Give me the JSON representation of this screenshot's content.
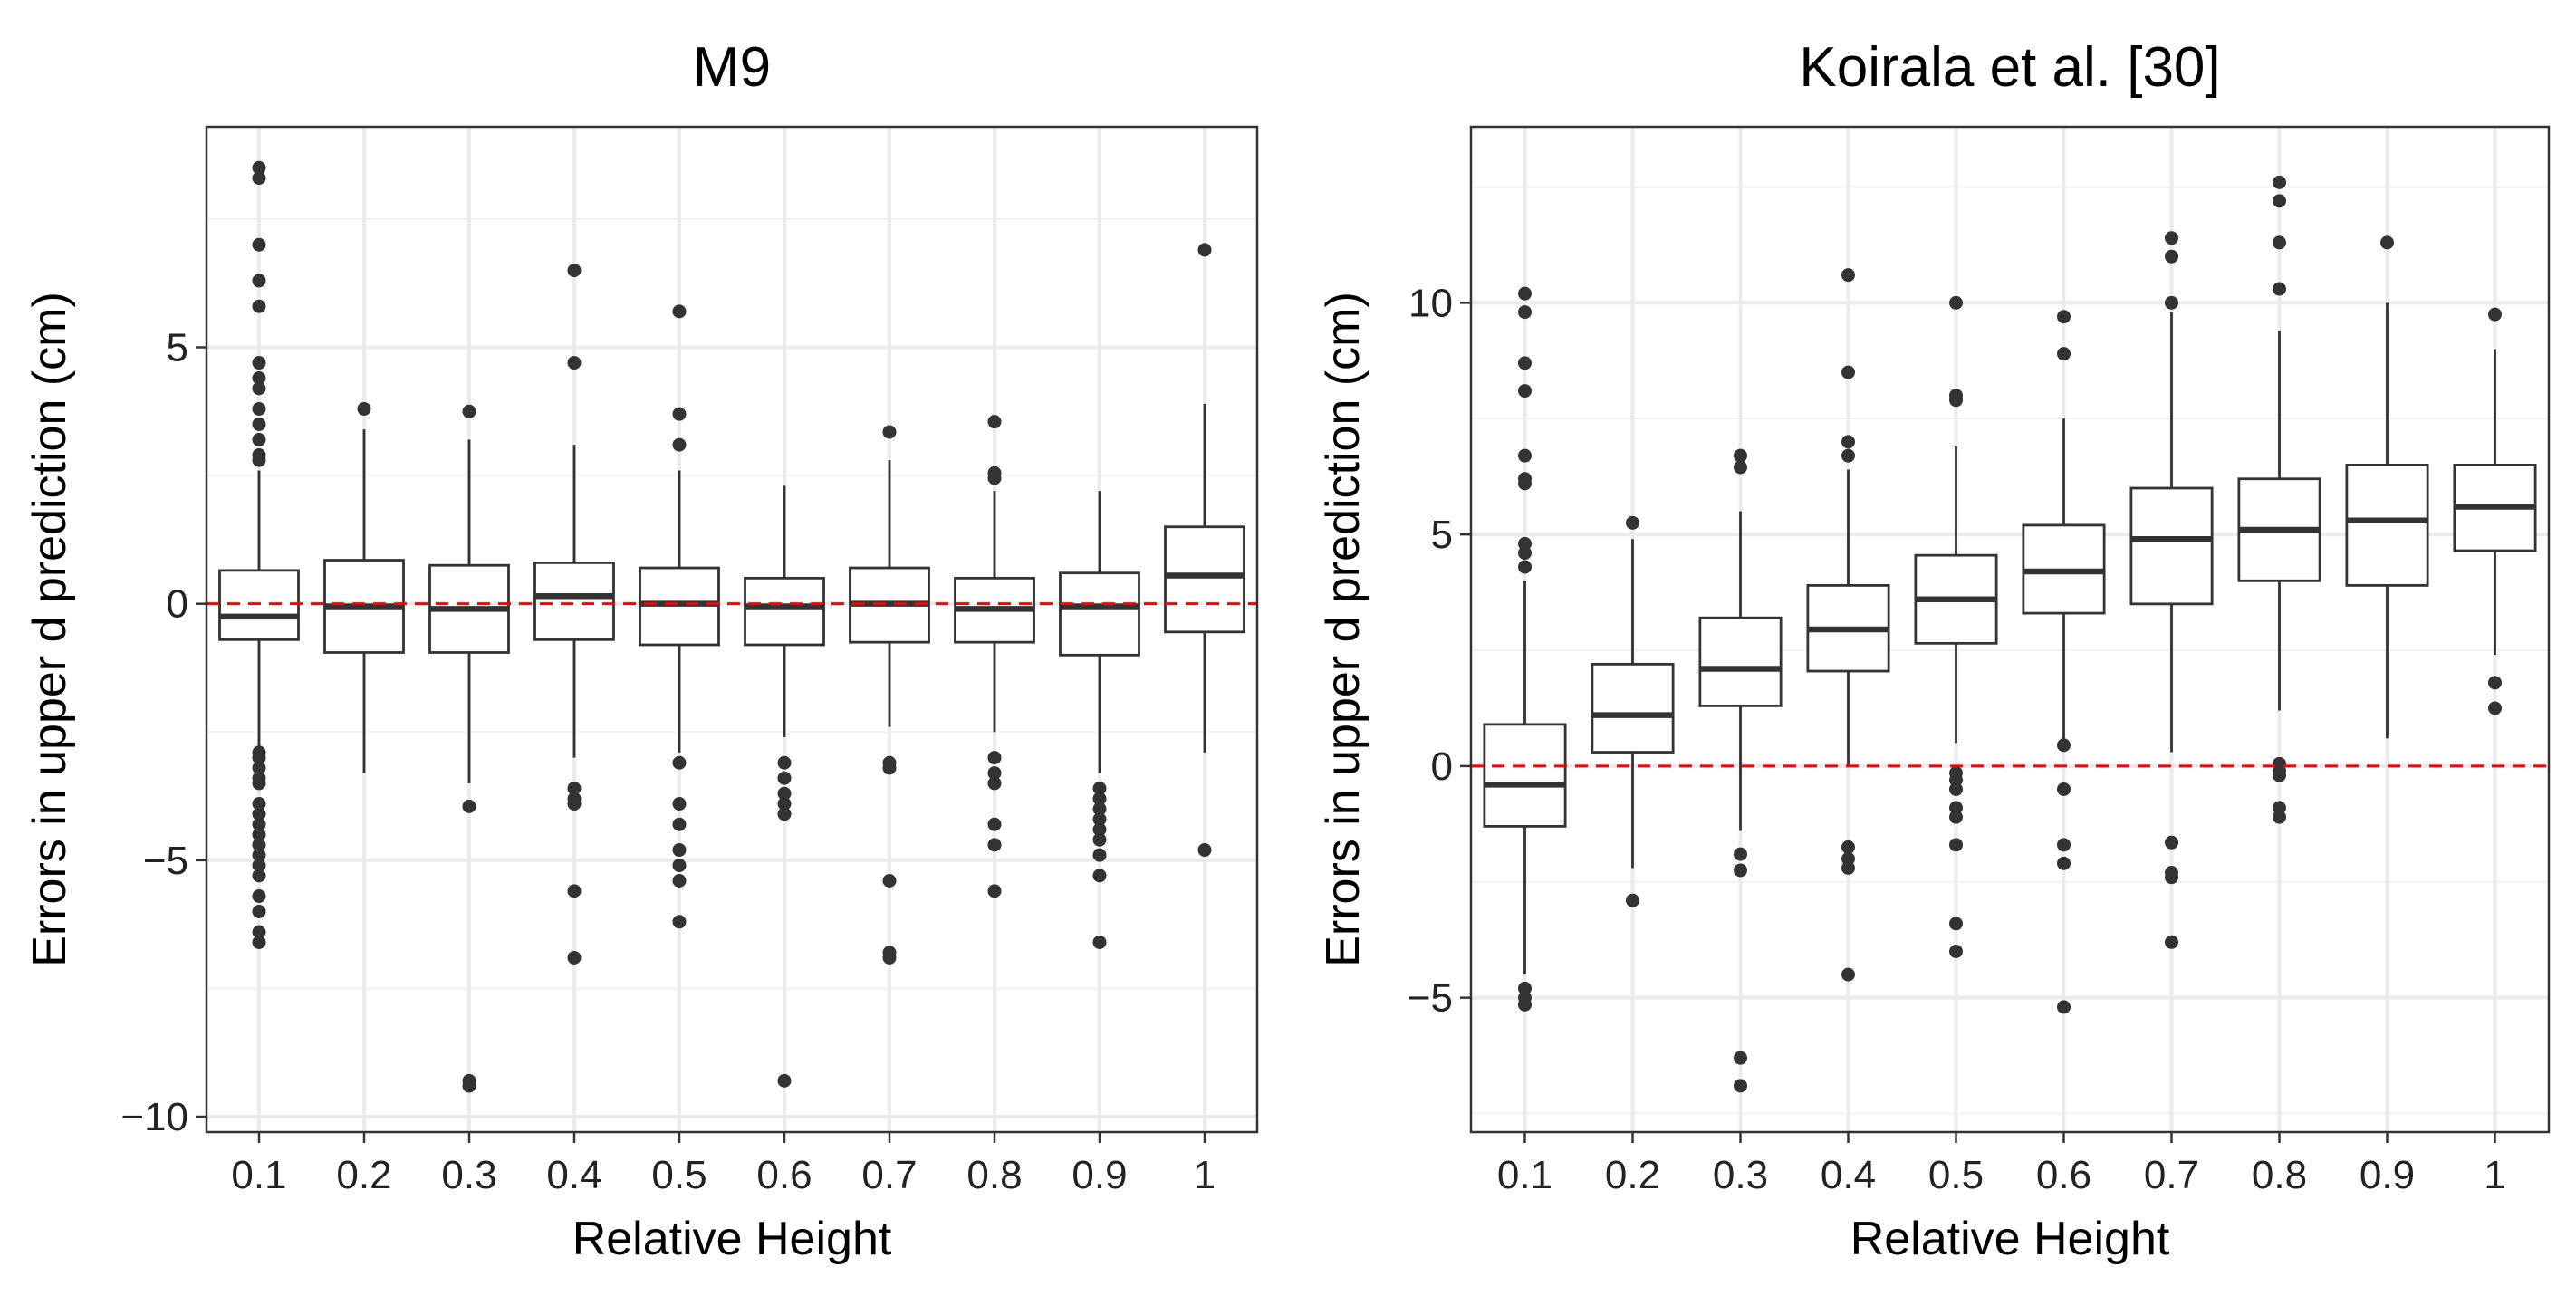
{
  "chart_data": [
    {
      "type": "box",
      "title": "M9",
      "xlabel": "Relative Height",
      "ylabel": "Errors in upper d prediction (cm)",
      "categories": [
        "0.1",
        "0.2",
        "0.3",
        "0.4",
        "0.5",
        "0.6",
        "0.7",
        "0.8",
        "0.9",
        "1"
      ],
      "ylim": [
        -10.3,
        9.3
      ],
      "yticks": [
        -10,
        -5,
        0,
        5
      ],
      "ytick_labels": [
        "−10",
        "−5",
        "0",
        "5"
      ],
      "reference_line": {
        "y": 0,
        "color": "#ff0000",
        "style": "dashed"
      },
      "boxes": [
        {
          "category": "0.1",
          "lw": -3.2,
          "q1": -0.7,
          "median": -0.25,
          "q3": 0.65,
          "uw": 2.6,
          "outliers": [
            8.5,
            8.3,
            7.0,
            6.3,
            5.8,
            4.7,
            4.4,
            4.2,
            3.8,
            3.5,
            3.2,
            2.9,
            2.8,
            -2.9,
            -3.0,
            -3.2,
            -3.4,
            -3.5,
            -3.9,
            -4.1,
            -4.3,
            -4.5,
            -4.7,
            -4.9,
            -5.1,
            -5.3,
            -5.7,
            -6.0,
            -6.4,
            -6.6
          ]
        },
        {
          "category": "0.2",
          "lw": -3.3,
          "q1": -0.95,
          "median": -0.05,
          "q3": 0.85,
          "uw": 3.4,
          "outliers": [
            3.8
          ]
        },
        {
          "category": "0.3",
          "lw": -3.5,
          "q1": -0.95,
          "median": -0.1,
          "q3": 0.75,
          "uw": 3.2,
          "outliers": [
            3.75,
            -3.95,
            -9.3,
            -9.4
          ]
        },
        {
          "category": "0.4",
          "lw": -3.0,
          "q1": -0.7,
          "median": 0.15,
          "q3": 0.8,
          "uw": 3.1,
          "outliers": [
            6.5,
            4.7,
            -3.6,
            -3.8,
            -3.9,
            -5.6,
            -6.9
          ]
        },
        {
          "category": "0.5",
          "lw": -2.9,
          "q1": -0.8,
          "median": 0.0,
          "q3": 0.7,
          "uw": 2.6,
          "outliers": [
            5.7,
            3.7,
            3.1,
            -3.1,
            -3.9,
            -4.3,
            -4.8,
            -5.1,
            -5.4,
            -6.2
          ]
        },
        {
          "category": "0.6",
          "lw": -2.6,
          "q1": -0.8,
          "median": -0.05,
          "q3": 0.5,
          "uw": 2.3,
          "outliers": [
            -3.1,
            -3.4,
            -3.7,
            -3.9,
            -4.1,
            -9.3
          ]
        },
        {
          "category": "0.7",
          "lw": -2.4,
          "q1": -0.75,
          "median": 0.0,
          "q3": 0.7,
          "uw": 2.8,
          "outliers": [
            3.35,
            -3.1,
            -3.2,
            -5.4,
            -6.8,
            -6.9
          ]
        },
        {
          "category": "0.8",
          "lw": -2.5,
          "q1": -0.75,
          "median": -0.1,
          "q3": 0.5,
          "uw": 2.2,
          "outliers": [
            3.55,
            2.55,
            2.45,
            -3.0,
            -3.3,
            -3.5,
            -4.3,
            -4.7,
            -5.6
          ]
        },
        {
          "category": "0.9",
          "lw": -3.3,
          "q1": -1.0,
          "median": -0.05,
          "q3": 0.6,
          "uw": 2.2,
          "outliers": [
            -3.6,
            -3.8,
            -4.0,
            -4.2,
            -4.4,
            -4.6,
            -4.9,
            -5.3,
            -6.6
          ]
        },
        {
          "category": "1",
          "lw": -2.9,
          "q1": -0.55,
          "median": 0.55,
          "q3": 1.5,
          "uw": 3.9,
          "outliers": [
            6.9,
            -4.8
          ]
        }
      ]
    },
    {
      "type": "box",
      "title": "Koirala et al. [30]",
      "xlabel": "Relative Height",
      "ylabel": "Errors in upper d prediction (cm)",
      "categories": [
        "0.1",
        "0.2",
        "0.3",
        "0.4",
        "0.5",
        "0.6",
        "0.7",
        "0.8",
        "0.9",
        "1"
      ],
      "ylim": [
        -7.9,
        13.8
      ],
      "yticks": [
        -5,
        0,
        5,
        10
      ],
      "ytick_labels": [
        "−5",
        "0",
        "5",
        "10"
      ],
      "reference_line": {
        "y": 0,
        "color": "#ff0000",
        "style": "dashed"
      },
      "boxes": [
        {
          "category": "0.1",
          "lw": -4.5,
          "q1": -1.3,
          "median": -0.4,
          "q3": 0.9,
          "uw": 4.0,
          "outliers": [
            10.2,
            9.8,
            8.7,
            8.1,
            6.7,
            6.2,
            6.1,
            4.8,
            4.6,
            4.3,
            -4.8,
            -5.0,
            -5.15
          ]
        },
        {
          "category": "0.2",
          "lw": -2.2,
          "q1": 0.3,
          "median": 1.1,
          "q3": 2.2,
          "uw": 4.9,
          "outliers": [
            5.25,
            -2.9
          ]
        },
        {
          "category": "0.3",
          "lw": -1.4,
          "q1": 1.3,
          "median": 2.1,
          "q3": 3.2,
          "uw": 5.5,
          "outliers": [
            6.7,
            6.45,
            -1.9,
            -2.25,
            -6.3,
            -6.9
          ]
        },
        {
          "category": "0.4",
          "lw": 0.0,
          "q1": 2.05,
          "median": 2.95,
          "q3": 3.9,
          "uw": 6.4,
          "outliers": [
            10.6,
            8.5,
            7.0,
            6.7,
            -1.75,
            -2.0,
            -2.2,
            -4.5
          ]
        },
        {
          "category": "0.5",
          "lw": 0.5,
          "q1": 2.65,
          "median": 3.6,
          "q3": 4.55,
          "uw": 6.9,
          "outliers": [
            10.0,
            8.0,
            7.9,
            -0.15,
            -0.3,
            -0.5,
            -0.9,
            -1.1,
            -1.7,
            -3.4,
            -4.0
          ]
        },
        {
          "category": "0.6",
          "lw": 0.5,
          "q1": 3.3,
          "median": 4.2,
          "q3": 5.2,
          "uw": 7.5,
          "outliers": [
            9.7,
            8.9,
            0.45,
            -0.5,
            -1.7,
            -2.1,
            -5.2
          ]
        },
        {
          "category": "0.7",
          "lw": 0.3,
          "q1": 3.5,
          "median": 4.9,
          "q3": 6.0,
          "uw": 9.8,
          "outliers": [
            11.4,
            11.0,
            10.0,
            -1.65,
            -2.3,
            -2.4,
            -3.8
          ]
        },
        {
          "category": "0.8",
          "lw": 1.2,
          "q1": 4.0,
          "median": 5.1,
          "q3": 6.2,
          "uw": 9.4,
          "outliers": [
            12.6,
            12.2,
            11.3,
            10.3,
            0.05,
            -0.1,
            -0.2,
            -0.9,
            -1.1
          ]
        },
        {
          "category": "0.9",
          "lw": 0.6,
          "q1": 3.9,
          "median": 5.3,
          "q3": 6.5,
          "uw": 10.0,
          "outliers": [
            11.3
          ]
        },
        {
          "category": "1",
          "lw": 2.4,
          "q1": 4.65,
          "median": 5.6,
          "q3": 6.5,
          "uw": 9.0,
          "outliers": [
            9.75,
            1.8,
            1.25
          ]
        }
      ]
    }
  ]
}
